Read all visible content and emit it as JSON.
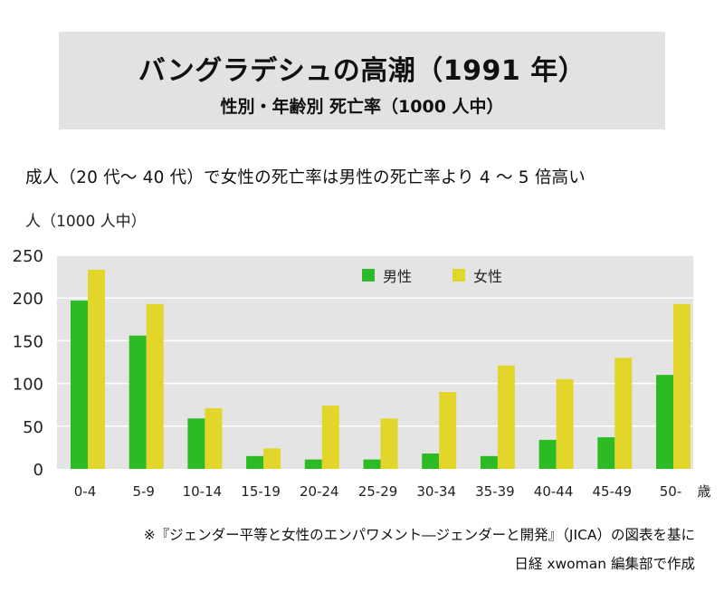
{
  "header": {
    "title": "バングラデシュの高潮（1991 年）",
    "subtitle": "性別・年齢別 死亡率（1000 人中）"
  },
  "headline": "成人（20 代〜 40 代）で女性の死亡率は男性の死亡率より 4 〜 5 倍高い",
  "source": {
    "line1": "※『ジェンダー平等と女性のエンパワメント―ジェンダーと開発』（JICA）の図表を基に",
    "line2": "日経 xwoman 編集部で作成"
  },
  "colors": {
    "male": "#2dbb25",
    "female": "#e3d62b",
    "plot_bg": "#e4e4e4",
    "gridline": "#ffffff"
  },
  "chart_data": {
    "type": "bar",
    "title": "バングラデシュの高潮（1991 年）",
    "subtitle": "性別・年齢別 死亡率（1000 人中）",
    "ylabel": "人（1000 人中）",
    "xlabel": "歳",
    "ylim": [
      0,
      250
    ],
    "yticks": [
      0,
      50,
      100,
      150,
      200,
      250
    ],
    "grid": true,
    "legend_position": "top-center",
    "categories": [
      "0-4",
      "5-9",
      "10-14",
      "15-19",
      "20-24",
      "25-29",
      "30-34",
      "35-39",
      "40-44",
      "45-49",
      "50-"
    ],
    "series": [
      {
        "name": "男性",
        "values": [
          197,
          156,
          59,
          15,
          11,
          11,
          18,
          15,
          34,
          37,
          110
        ]
      },
      {
        "name": "女性",
        "values": [
          233,
          193,
          71,
          24,
          74,
          59,
          90,
          121,
          105,
          130,
          193
        ]
      }
    ]
  }
}
